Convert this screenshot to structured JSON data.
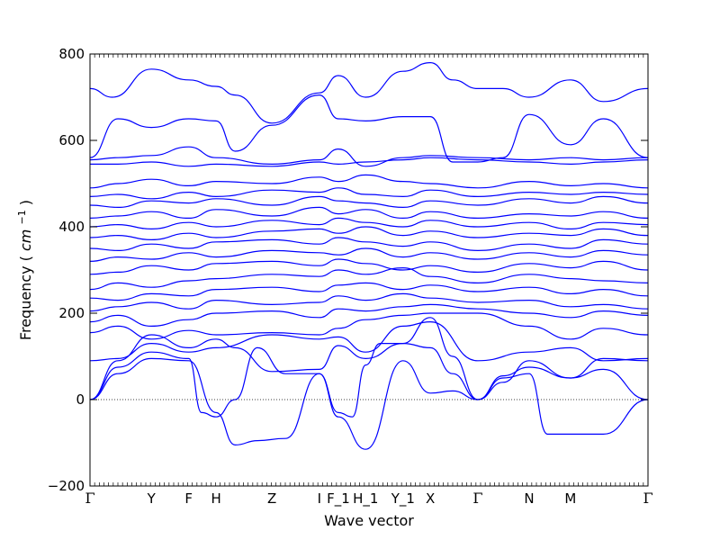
{
  "chart_data": {
    "type": "line",
    "xlabel": "Wave vector",
    "ylabel": "Frequency",
    "ylabel_unit_base": "cm",
    "ylabel_unit_exp": "−1",
    "ylim": [
      -200,
      800
    ],
    "y_ticks": [
      -200,
      0,
      200,
      400,
      600,
      800
    ],
    "zero_line": true,
    "colors": {
      "bands": "#0000ff",
      "axis": "#000000",
      "zero": "#000000"
    },
    "x_special_points": [
      {
        "label": "Γ",
        "x": 0.0
      },
      {
        "label": "Y",
        "x": 0.11
      },
      {
        "label": "F",
        "x": 0.177
      },
      {
        "label": "H",
        "x": 0.226
      },
      {
        "label": "Z",
        "x": 0.326
      },
      {
        "label": "I",
        "x": 0.411
      },
      {
        "label": "F_1",
        "x": 0.445
      },
      {
        "label": "H_1",
        "x": 0.494
      },
      {
        "label": "Y_1",
        "x": 0.561
      },
      {
        "label": "X",
        "x": 0.61
      },
      {
        "label": "Γ",
        "x": 0.695
      },
      {
        "label": "N",
        "x": 0.787
      },
      {
        "label": "M",
        "x": 0.861
      },
      {
        "label": "Γ",
        "x": 1.0
      }
    ],
    "bands": [
      {
        "x": [
          0,
          0.05,
          0.11,
          0.177,
          0.226,
          0.26,
          0.3,
          0.35,
          0.411,
          0.445,
          0.494,
          0.561,
          0.61,
          0.65,
          0.695,
          0.74,
          0.787,
          0.82,
          0.861,
          0.92,
          1.0
        ],
        "y": [
          0,
          60,
          95,
          90,
          -30,
          -105,
          -95,
          -90,
          60,
          -40,
          -115,
          90,
          15,
          20,
          0,
          50,
          60,
          -80,
          -80,
          -80,
          0
        ]
      },
      {
        "x": [
          0,
          0.05,
          0.11,
          0.177,
          0.2,
          0.226,
          0.26,
          0.3,
          0.35,
          0.411,
          0.445,
          0.47,
          0.494,
          0.52,
          0.561,
          0.61,
          0.65,
          0.695,
          0.74,
          0.787,
          0.861,
          0.92,
          1.0
        ],
        "y": [
          0,
          75,
          110,
          95,
          -30,
          -40,
          0,
          120,
          60,
          60,
          -30,
          -40,
          80,
          130,
          130,
          120,
          60,
          0,
          55,
          75,
          50,
          70,
          0
        ]
      },
      {
        "x": [
          0,
          0.05,
          0.11,
          0.177,
          0.226,
          0.26,
          0.326,
          0.411,
          0.445,
          0.494,
          0.561,
          0.61,
          0.65,
          0.695,
          0.74,
          0.787,
          0.861,
          0.92,
          1.0
        ],
        "y": [
          0,
          90,
          150,
          120,
          140,
          120,
          65,
          70,
          125,
          95,
          130,
          190,
          100,
          0,
          40,
          90,
          50,
          95,
          90
        ]
      },
      {
        "x": [
          0,
          0.05,
          0.11,
          0.177,
          0.226,
          0.326,
          0.411,
          0.445,
          0.494,
          0.561,
          0.61,
          0.695,
          0.787,
          0.861,
          0.92,
          1.0
        ],
        "y": [
          90,
          95,
          130,
          110,
          120,
          150,
          140,
          145,
          110,
          170,
          180,
          90,
          110,
          120,
          90,
          95
        ]
      },
      {
        "x": [
          0,
          0.05,
          0.11,
          0.177,
          0.226,
          0.326,
          0.411,
          0.445,
          0.494,
          0.561,
          0.61,
          0.695,
          0.787,
          0.861,
          0.92,
          1.0
        ],
        "y": [
          155,
          170,
          140,
          160,
          150,
          155,
          150,
          165,
          185,
          195,
          200,
          200,
          170,
          140,
          165,
          150
        ]
      },
      {
        "x": [
          0,
          0.05,
          0.11,
          0.177,
          0.226,
          0.326,
          0.411,
          0.445,
          0.494,
          0.561,
          0.61,
          0.695,
          0.787,
          0.861,
          0.92,
          1.0
        ],
        "y": [
          180,
          195,
          170,
          185,
          200,
          205,
          190,
          210,
          205,
          215,
          220,
          210,
          200,
          190,
          205,
          195
        ]
      },
      {
        "x": [
          0,
          0.05,
          0.11,
          0.177,
          0.226,
          0.326,
          0.411,
          0.445,
          0.494,
          0.561,
          0.61,
          0.695,
          0.787,
          0.861,
          0.92,
          1.0
        ],
        "y": [
          205,
          215,
          225,
          210,
          230,
          220,
          225,
          240,
          230,
          245,
          235,
          225,
          230,
          215,
          220,
          210
        ]
      },
      {
        "x": [
          0,
          0.05,
          0.11,
          0.177,
          0.226,
          0.326,
          0.411,
          0.445,
          0.494,
          0.561,
          0.61,
          0.695,
          0.787,
          0.861,
          0.92,
          1.0
        ],
        "y": [
          235,
          230,
          245,
          240,
          255,
          260,
          250,
          265,
          270,
          255,
          265,
          250,
          260,
          245,
          255,
          240
        ]
      },
      {
        "x": [
          0,
          0.05,
          0.11,
          0.177,
          0.226,
          0.326,
          0.411,
          0.445,
          0.494,
          0.561,
          0.61,
          0.695,
          0.787,
          0.861,
          0.92,
          1.0
        ],
        "y": [
          255,
          270,
          260,
          275,
          280,
          290,
          285,
          300,
          290,
          305,
          285,
          270,
          290,
          280,
          275,
          270
        ]
      },
      {
        "x": [
          0,
          0.05,
          0.11,
          0.177,
          0.226,
          0.326,
          0.411,
          0.445,
          0.494,
          0.561,
          0.61,
          0.695,
          0.787,
          0.861,
          0.92,
          1.0
        ],
        "y": [
          290,
          295,
          310,
          300,
          315,
          320,
          310,
          325,
          315,
          300,
          310,
          295,
          315,
          305,
          320,
          300
        ]
      },
      {
        "x": [
          0,
          0.05,
          0.11,
          0.177,
          0.226,
          0.326,
          0.411,
          0.445,
          0.494,
          0.561,
          0.61,
          0.695,
          0.787,
          0.861,
          0.92,
          1.0
        ],
        "y": [
          320,
          330,
          325,
          340,
          330,
          345,
          340,
          335,
          350,
          330,
          340,
          325,
          340,
          330,
          345,
          335
        ]
      },
      {
        "x": [
          0,
          0.05,
          0.11,
          0.177,
          0.226,
          0.326,
          0.411,
          0.445,
          0.494,
          0.561,
          0.61,
          0.695,
          0.787,
          0.861,
          0.92,
          1.0
        ],
        "y": [
          350,
          345,
          360,
          350,
          365,
          370,
          360,
          375,
          365,
          355,
          365,
          345,
          360,
          350,
          370,
          360
        ]
      },
      {
        "x": [
          0,
          0.05,
          0.11,
          0.177,
          0.226,
          0.326,
          0.411,
          0.445,
          0.494,
          0.561,
          0.61,
          0.695,
          0.787,
          0.861,
          0.92,
          1.0
        ],
        "y": [
          375,
          380,
          370,
          385,
          375,
          390,
          395,
          385,
          400,
          380,
          390,
          375,
          385,
          380,
          395,
          380
        ]
      },
      {
        "x": [
          0,
          0.05,
          0.11,
          0.177,
          0.226,
          0.326,
          0.411,
          0.445,
          0.494,
          0.561,
          0.61,
          0.695,
          0.787,
          0.861,
          0.92,
          1.0
        ],
        "y": [
          400,
          405,
          395,
          410,
          400,
          415,
          405,
          420,
          410,
          400,
          415,
          400,
          410,
          395,
          410,
          405
        ]
      },
      {
        "x": [
          0,
          0.05,
          0.11,
          0.177,
          0.226,
          0.326,
          0.411,
          0.445,
          0.494,
          0.561,
          0.61,
          0.695,
          0.787,
          0.861,
          0.92,
          1.0
        ],
        "y": [
          420,
          425,
          435,
          420,
          440,
          425,
          445,
          430,
          440,
          420,
          435,
          420,
          430,
          425,
          435,
          420
        ]
      },
      {
        "x": [
          0,
          0.05,
          0.11,
          0.177,
          0.226,
          0.326,
          0.411,
          0.445,
          0.494,
          0.561,
          0.61,
          0.695,
          0.787,
          0.861,
          0.92,
          1.0
        ],
        "y": [
          450,
          445,
          460,
          455,
          465,
          450,
          470,
          460,
          455,
          445,
          460,
          450,
          465,
          455,
          470,
          455
        ]
      },
      {
        "x": [
          0,
          0.05,
          0.11,
          0.177,
          0.226,
          0.326,
          0.411,
          0.445,
          0.494,
          0.561,
          0.61,
          0.695,
          0.787,
          0.861,
          0.92,
          1.0
        ],
        "y": [
          470,
          475,
          465,
          480,
          470,
          485,
          480,
          490,
          475,
          470,
          485,
          470,
          480,
          475,
          480,
          475
        ]
      },
      {
        "x": [
          0,
          0.05,
          0.11,
          0.177,
          0.226,
          0.326,
          0.411,
          0.445,
          0.494,
          0.561,
          0.61,
          0.695,
          0.787,
          0.861,
          0.92,
          1.0
        ],
        "y": [
          490,
          500,
          510,
          495,
          505,
          500,
          515,
          505,
          520,
          505,
          500,
          490,
          505,
          495,
          500,
          490
        ]
      },
      {
        "x": [
          0,
          0.05,
          0.11,
          0.177,
          0.226,
          0.326,
          0.411,
          0.445,
          0.494,
          0.561,
          0.61,
          0.695,
          0.787,
          0.861,
          0.92,
          1.0
        ],
        "y": [
          545,
          545,
          550,
          540,
          545,
          540,
          550,
          545,
          550,
          555,
          560,
          555,
          550,
          545,
          550,
          555
        ]
      },
      {
        "x": [
          0,
          0.05,
          0.11,
          0.177,
          0.226,
          0.326,
          0.411,
          0.445,
          0.494,
          0.561,
          0.61,
          0.695,
          0.787,
          0.861,
          0.92,
          1.0
        ],
        "y": [
          555,
          560,
          565,
          585,
          560,
          545,
          555,
          580,
          540,
          560,
          565,
          560,
          555,
          560,
          555,
          560
        ]
      },
      {
        "x": [
          0,
          0.05,
          0.11,
          0.177,
          0.226,
          0.26,
          0.326,
          0.411,
          0.445,
          0.494,
          0.561,
          0.61,
          0.65,
          0.695,
          0.74,
          0.787,
          0.861,
          0.92,
          1.0
        ],
        "y": [
          560,
          650,
          630,
          650,
          645,
          575,
          635,
          705,
          650,
          645,
          655,
          655,
          550,
          550,
          560,
          660,
          590,
          650,
          560
        ]
      },
      {
        "x": [
          0,
          0.04,
          0.11,
          0.177,
          0.226,
          0.26,
          0.326,
          0.411,
          0.445,
          0.494,
          0.561,
          0.61,
          0.65,
          0.695,
          0.74,
          0.787,
          0.861,
          0.92,
          1.0
        ],
        "y": [
          720,
          700,
          765,
          740,
          725,
          705,
          640,
          710,
          750,
          700,
          760,
          780,
          740,
          720,
          720,
          700,
          740,
          690,
          720
        ]
      }
    ]
  }
}
